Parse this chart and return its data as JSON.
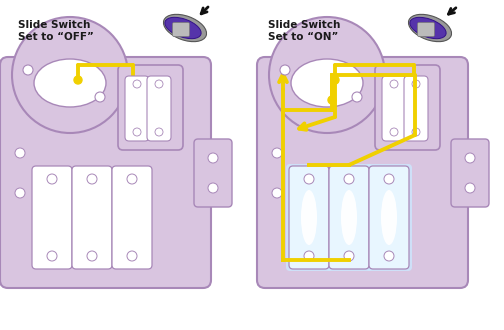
{
  "bg_color": "#ffffff",
  "panel_color": "#d9c5e0",
  "panel_edge_color": "#a888b8",
  "cutout_color": "#ffffff",
  "arrow_color": "#f0d000",
  "arrow_lw": 2.8,
  "text_color": "#1a1a1a",
  "title_off": "Slide Switch\nSet to “OFF”",
  "title_on": "Slide Switch\nSet to “ON”",
  "title_fontsize": 7.5,
  "title_fontweight": "bold"
}
